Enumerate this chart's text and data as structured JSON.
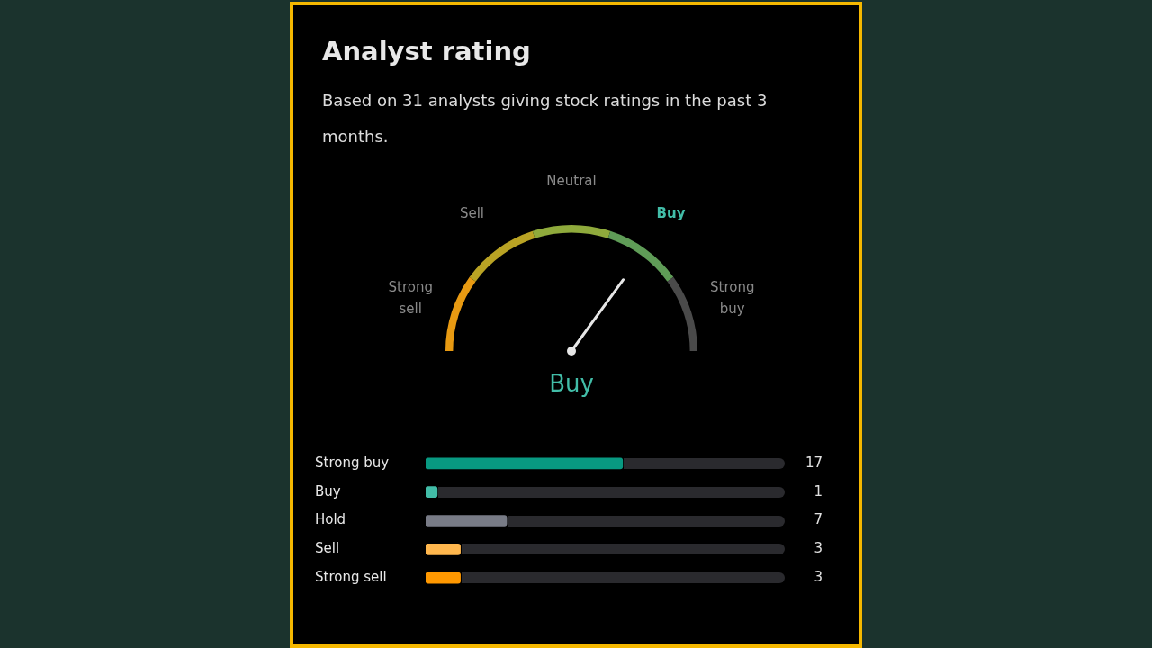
{
  "chart_data": [
    {
      "type": "donut",
      "title": "Analyst rating",
      "subtitle": "Based on 31 analysts giving stock ratings in the past 3 months.",
      "categories": [
        "Strong sell",
        "Sell",
        "Neutral",
        "Buy",
        "Strong buy"
      ],
      "values": [
        20,
        20,
        20,
        20,
        20
      ],
      "colors": [
        "#e89a12",
        "#b9a324",
        "#8faa3c",
        "#5f9c57",
        "#4a4a4a"
      ],
      "needle": "Buy",
      "annotations": [
        "Buy"
      ]
    },
    {
      "type": "bar",
      "orientation": "horizontal",
      "categories": [
        "Strong buy",
        "Buy",
        "Hold",
        "Sell",
        "Strong sell"
      ],
      "values": [
        17,
        1,
        7,
        3,
        3
      ],
      "colors": [
        "#089981",
        "#42bda8",
        "#787b86",
        "#ffb74d",
        "#ff9800"
      ],
      "xlim": [
        0,
        31
      ],
      "tick_labels": false,
      "data_labels": true,
      "legend": false
    }
  ]
}
